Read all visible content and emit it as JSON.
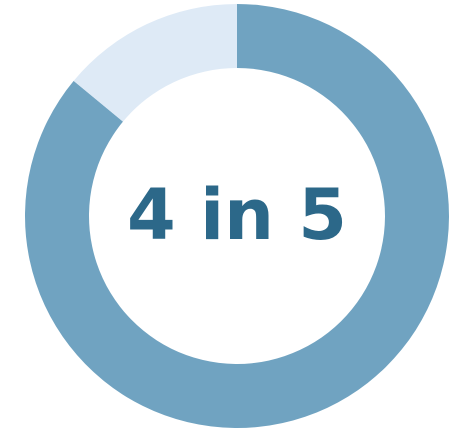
{
  "chart_data": {
    "type": "pie",
    "style": "donut",
    "center_label": "4 in 5",
    "slices": [
      {
        "value": 86,
        "color": "#70a3c1"
      },
      {
        "value": 14,
        "color": "#deeaf6"
      }
    ],
    "label_color": "#2c6889"
  }
}
